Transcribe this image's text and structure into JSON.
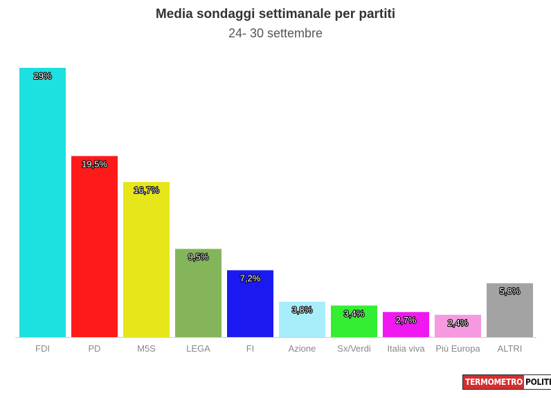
{
  "chart_data": {
    "type": "bar",
    "title": "Media sondaggi settimanale per partiti",
    "subtitle": "24- 30 settembre",
    "xlabel": "",
    "ylabel": "",
    "ylim": [
      0,
      29
    ],
    "grid": false,
    "categories": [
      "FDI",
      "PD",
      "M5S",
      "LEGA",
      "FI",
      "Azione",
      "Sx/Verdi",
      "Italia viva",
      "Più Europa",
      "ALTRI"
    ],
    "values": [
      29,
      19.5,
      16.7,
      9.5,
      7.2,
      3.8,
      3.4,
      2.7,
      2.4,
      5.8
    ],
    "data_labels": [
      "29%",
      "19,5%",
      "16,7%",
      "9,5%",
      "7,2%",
      "3,8%",
      "3,4%",
      "2,7%",
      "2,4%",
      "5,8%"
    ],
    "colors": [
      "#1de0e0",
      "#ff1a1a",
      "#e6e61a",
      "#84b55a",
      "#1a1af0",
      "#a8eefa",
      "#33ee33",
      "#f01af0",
      "#f59ae0",
      "#a3a3a3"
    ]
  },
  "logo": {
    "part_a": "TERMOMETRO",
    "part_b": "POLITICO"
  }
}
